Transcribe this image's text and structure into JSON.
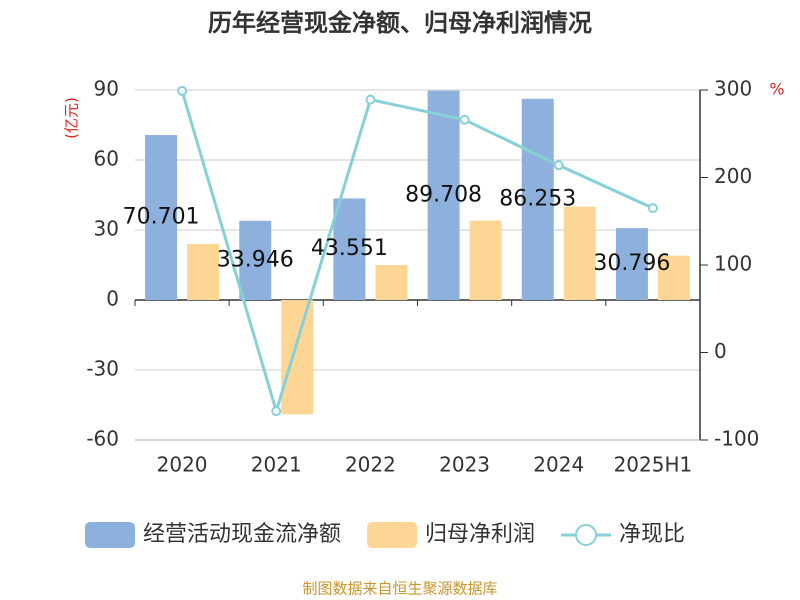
{
  "chart_data": {
    "type": "bar_line",
    "title": "历年经营现金净额、归母净利润情况",
    "y_label": "(亿元)",
    "y2_label": "%",
    "categories": [
      "2020",
      "2021",
      "2022",
      "2023",
      "2024",
      "2025H1"
    ],
    "series": [
      {
        "name": "经营活动现金流净额",
        "type": "bar",
        "color": "#8eb0dc",
        "values": [
          70.701,
          33.946,
          43.551,
          89.708,
          86.253,
          30.796
        ],
        "show_labels": true
      },
      {
        "name": "归母净利润",
        "type": "bar",
        "color": "#fdd696",
        "values": [
          24,
          -49,
          15,
          34,
          40,
          19
        ]
      },
      {
        "name": "净现比",
        "type": "line",
        "axis": "y2",
        "color": "#86d0d8",
        "values": [
          299,
          -67,
          289,
          266,
          214,
          165
        ]
      }
    ],
    "ylim": [
      -60,
      90
    ],
    "yticks": [
      -60,
      -30,
      0,
      30,
      60,
      90
    ],
    "y2lim": [
      -100,
      300
    ],
    "y2ticks": [
      -100,
      0,
      100,
      200,
      300
    ],
    "grid": true,
    "source": "制图数据来自恒生聚源数据库"
  }
}
